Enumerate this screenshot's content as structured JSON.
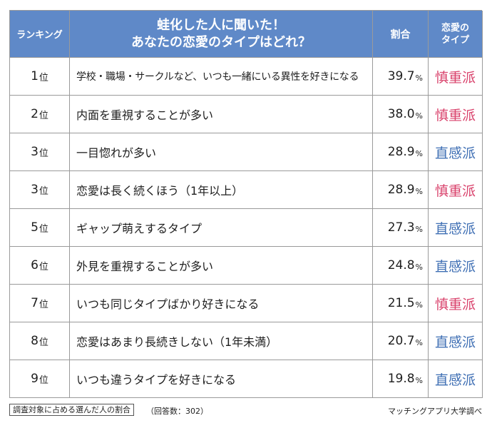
{
  "colors": {
    "header_bg": "#5f89c8",
    "cautious": "#d9416b",
    "intuitive": "#3f6fb4"
  },
  "header": {
    "rank": "ランキング",
    "question_line1": "蛙化した人に聞いた！",
    "question_line2": "あなたの恋愛のタイプはどれ？",
    "rate": "割合",
    "type_line1": "恋愛の",
    "type_line2": "タイプ"
  },
  "chart_data": {
    "type": "table",
    "columns": [
      "ランキング",
      "蛙化した人に聞いた！あなたの恋愛のタイプはどれ？",
      "割合",
      "恋愛のタイプ"
    ],
    "rows": [
      {
        "rank": "1",
        "item": "学校・職場・サークルなど、いつも一緒にいる異性を好きになる",
        "value": "39.7",
        "type": "慎重派",
        "kind": "cautious"
      },
      {
        "rank": "2",
        "item": "内面を重視することが多い",
        "value": "38.0",
        "type": "慎重派",
        "kind": "cautious"
      },
      {
        "rank": "3",
        "item": "一目惚れが多い",
        "value": "28.9",
        "type": "直感派",
        "kind": "intuitive"
      },
      {
        "rank": "3",
        "item": "恋愛は長く続くほう（1年以上）",
        "value": "28.9",
        "type": "慎重派",
        "kind": "cautious"
      },
      {
        "rank": "5",
        "item": "ギャップ萌えするタイプ",
        "value": "27.3",
        "type": "直感派",
        "kind": "intuitive"
      },
      {
        "rank": "6",
        "item": "外見を重視することが多い",
        "value": "24.8",
        "type": "直感派",
        "kind": "intuitive"
      },
      {
        "rank": "7",
        "item": "いつも同じタイプばかり好きになる",
        "value": "21.5",
        "type": "慎重派",
        "kind": "cautious"
      },
      {
        "rank": "8",
        "item": "恋愛はあまり長続きしない（1年未満）",
        "value": "20.7",
        "type": "直感派",
        "kind": "intuitive"
      },
      {
        "rank": "9",
        "item": "いつも違うタイプを好きになる",
        "value": "19.8",
        "type": "直感派",
        "kind": "intuitive"
      }
    ],
    "rank_suffix": "位",
    "value_unit": "%"
  },
  "footer": {
    "note": "調査対象に占める選んだ人の割合",
    "count": "（回答数：302）",
    "source": "マッチングアプリ大学調べ"
  }
}
